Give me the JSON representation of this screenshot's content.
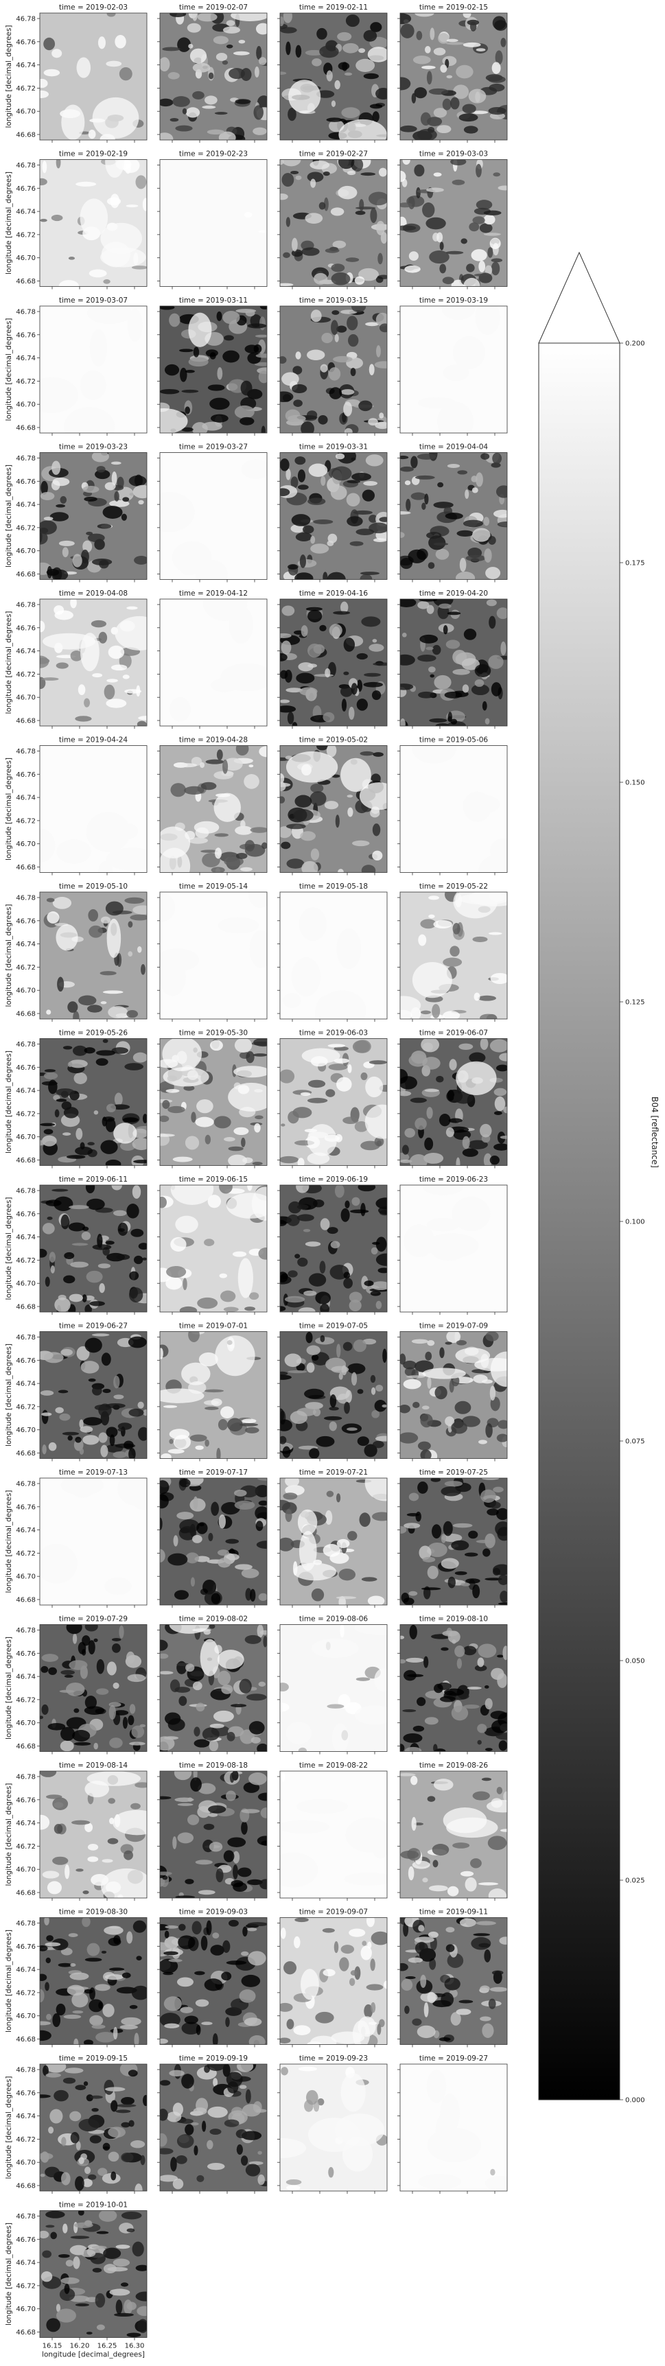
{
  "chart_data": {
    "type": "heatmap",
    "panel_title_prefix": "time = ",
    "panels": [
      {
        "time": "2019-02-03",
        "tone": 0.78,
        "texture": 0.25,
        "cloud": 0.55
      },
      {
        "time": "2019-02-07",
        "tone": 0.52,
        "texture": 0.9,
        "cloud": 0.35
      },
      {
        "time": "2019-02-11",
        "tone": 0.42,
        "texture": 0.8,
        "cloud": 0.45
      },
      {
        "time": "2019-02-15",
        "tone": 0.55,
        "texture": 0.9,
        "cloud": 0.05
      },
      {
        "time": "2019-02-19",
        "tone": 0.9,
        "texture": 0.35,
        "cloud": 0.8
      },
      {
        "time": "2019-02-23",
        "tone": 0.98,
        "texture": 0.03,
        "cloud": 1.0
      },
      {
        "time": "2019-02-27",
        "tone": 0.55,
        "texture": 0.9,
        "cloud": 0.05
      },
      {
        "time": "2019-03-03",
        "tone": 0.6,
        "texture": 0.85,
        "cloud": 0.15
      },
      {
        "time": "2019-03-07",
        "tone": 0.99,
        "texture": 0.0,
        "cloud": 1.0
      },
      {
        "time": "2019-03-11",
        "tone": 0.35,
        "texture": 0.85,
        "cloud": 0.3
      },
      {
        "time": "2019-03-15",
        "tone": 0.5,
        "texture": 0.9,
        "cloud": 0.05
      },
      {
        "time": "2019-03-19",
        "tone": 0.99,
        "texture": 0.0,
        "cloud": 1.0
      },
      {
        "time": "2019-03-23",
        "tone": 0.5,
        "texture": 0.9,
        "cloud": 0.05
      },
      {
        "time": "2019-03-27",
        "tone": 0.99,
        "texture": 0.0,
        "cloud": 1.0
      },
      {
        "time": "2019-03-31",
        "tone": 0.5,
        "texture": 0.9,
        "cloud": 0.05
      },
      {
        "time": "2019-04-04",
        "tone": 0.5,
        "texture": 0.9,
        "cloud": 0.05
      },
      {
        "time": "2019-04-08",
        "tone": 0.85,
        "texture": 0.5,
        "cloud": 0.7
      },
      {
        "time": "2019-04-12",
        "tone": 0.99,
        "texture": 0.0,
        "cloud": 1.0
      },
      {
        "time": "2019-04-16",
        "tone": 0.38,
        "texture": 0.9,
        "cloud": 0.05
      },
      {
        "time": "2019-04-20",
        "tone": 0.38,
        "texture": 0.9,
        "cloud": 0.05
      },
      {
        "time": "2019-04-24",
        "tone": 0.99,
        "texture": 0.0,
        "cloud": 1.0
      },
      {
        "time": "2019-04-28",
        "tone": 0.7,
        "texture": 0.7,
        "cloud": 0.6
      },
      {
        "time": "2019-05-02",
        "tone": 0.55,
        "texture": 0.8,
        "cloud": 0.5
      },
      {
        "time": "2019-05-06",
        "tone": 0.99,
        "texture": 0.0,
        "cloud": 1.0
      },
      {
        "time": "2019-05-10",
        "tone": 0.65,
        "texture": 0.55,
        "cloud": 0.4
      },
      {
        "time": "2019-05-14",
        "tone": 0.99,
        "texture": 0.0,
        "cloud": 1.0
      },
      {
        "time": "2019-05-18",
        "tone": 0.99,
        "texture": 0.0,
        "cloud": 1.0
      },
      {
        "time": "2019-05-22",
        "tone": 0.85,
        "texture": 0.5,
        "cloud": 0.75
      },
      {
        "time": "2019-05-26",
        "tone": 0.38,
        "texture": 0.9,
        "cloud": 0.15
      },
      {
        "time": "2019-05-30",
        "tone": 0.65,
        "texture": 0.8,
        "cloud": 0.6
      },
      {
        "time": "2019-06-03",
        "tone": 0.8,
        "texture": 0.6,
        "cloud": 0.75
      },
      {
        "time": "2019-06-07",
        "tone": 0.38,
        "texture": 0.9,
        "cloud": 0.1
      },
      {
        "time": "2019-06-11",
        "tone": 0.38,
        "texture": 0.9,
        "cloud": 0.05
      },
      {
        "time": "2019-06-15",
        "tone": 0.85,
        "texture": 0.4,
        "cloud": 0.8
      },
      {
        "time": "2019-06-19",
        "tone": 0.38,
        "texture": 0.9,
        "cloud": 0.05
      },
      {
        "time": "2019-06-23",
        "tone": 0.99,
        "texture": 0.0,
        "cloud": 1.0
      },
      {
        "time": "2019-06-27",
        "tone": 0.38,
        "texture": 0.9,
        "cloud": 0.05
      },
      {
        "time": "2019-07-01",
        "tone": 0.7,
        "texture": 0.5,
        "cloud": 0.5
      },
      {
        "time": "2019-07-05",
        "tone": 0.38,
        "texture": 0.9,
        "cloud": 0.05
      },
      {
        "time": "2019-07-09",
        "tone": 0.6,
        "texture": 0.85,
        "cloud": 0.6
      },
      {
        "time": "2019-07-13",
        "tone": 0.99,
        "texture": 0.0,
        "cloud": 1.0
      },
      {
        "time": "2019-07-17",
        "tone": 0.38,
        "texture": 0.9,
        "cloud": 0.05
      },
      {
        "time": "2019-07-21",
        "tone": 0.7,
        "texture": 0.6,
        "cloud": 0.6
      },
      {
        "time": "2019-07-25",
        "tone": 0.38,
        "texture": 0.9,
        "cloud": 0.05
      },
      {
        "time": "2019-07-29",
        "tone": 0.38,
        "texture": 0.9,
        "cloud": 0.05
      },
      {
        "time": "2019-08-02",
        "tone": 0.45,
        "texture": 0.9,
        "cloud": 0.45
      },
      {
        "time": "2019-08-06",
        "tone": 0.97,
        "texture": 0.15,
        "cloud": 0.95
      },
      {
        "time": "2019-08-10",
        "tone": 0.38,
        "texture": 0.9,
        "cloud": 0.05
      },
      {
        "time": "2019-08-14",
        "tone": 0.78,
        "texture": 0.5,
        "cloud": 0.6
      },
      {
        "time": "2019-08-18",
        "tone": 0.38,
        "texture": 0.9,
        "cloud": 0.05
      },
      {
        "time": "2019-08-22",
        "tone": 0.99,
        "texture": 0.02,
        "cloud": 1.0
      },
      {
        "time": "2019-08-26",
        "tone": 0.68,
        "texture": 0.45,
        "cloud": 0.5
      },
      {
        "time": "2019-08-30",
        "tone": 0.38,
        "texture": 0.9,
        "cloud": 0.05
      },
      {
        "time": "2019-09-03",
        "tone": 0.38,
        "texture": 0.9,
        "cloud": 0.05
      },
      {
        "time": "2019-09-07",
        "tone": 0.85,
        "texture": 0.55,
        "cloud": 0.75
      },
      {
        "time": "2019-09-11",
        "tone": 0.45,
        "texture": 0.9,
        "cloud": 0.05
      },
      {
        "time": "2019-09-15",
        "tone": 0.42,
        "texture": 0.9,
        "cloud": 0.05
      },
      {
        "time": "2019-09-19",
        "tone": 0.42,
        "texture": 0.9,
        "cloud": 0.05
      },
      {
        "time": "2019-09-23",
        "tone": 0.95,
        "texture": 0.2,
        "cloud": 0.9
      },
      {
        "time": "2019-09-27",
        "tone": 0.99,
        "texture": 0.02,
        "cloud": 1.0
      },
      {
        "time": "2019-10-01",
        "tone": 0.42,
        "texture": 0.9,
        "cloud": 0.05
      }
    ],
    "columns": 4,
    "xlabel": "longitude [decimal_degrees]",
    "ylabel": "longitude [decimal_degrees]",
    "xticks": [
      "16.15",
      "16.20",
      "16.25",
      "16.30"
    ],
    "yticks": [
      "46.78",
      "46.76",
      "46.74",
      "46.72",
      "46.70",
      "46.68"
    ],
    "colorbar": {
      "label": "B04 [reflectance]",
      "range": [
        0.0,
        0.2
      ],
      "ticks": [
        "0.200",
        "0.175",
        "0.150",
        "0.125",
        "0.100",
        "0.075",
        "0.050",
        "0.025",
        "0.000"
      ],
      "extend": "max",
      "cmap": "gray"
    }
  }
}
